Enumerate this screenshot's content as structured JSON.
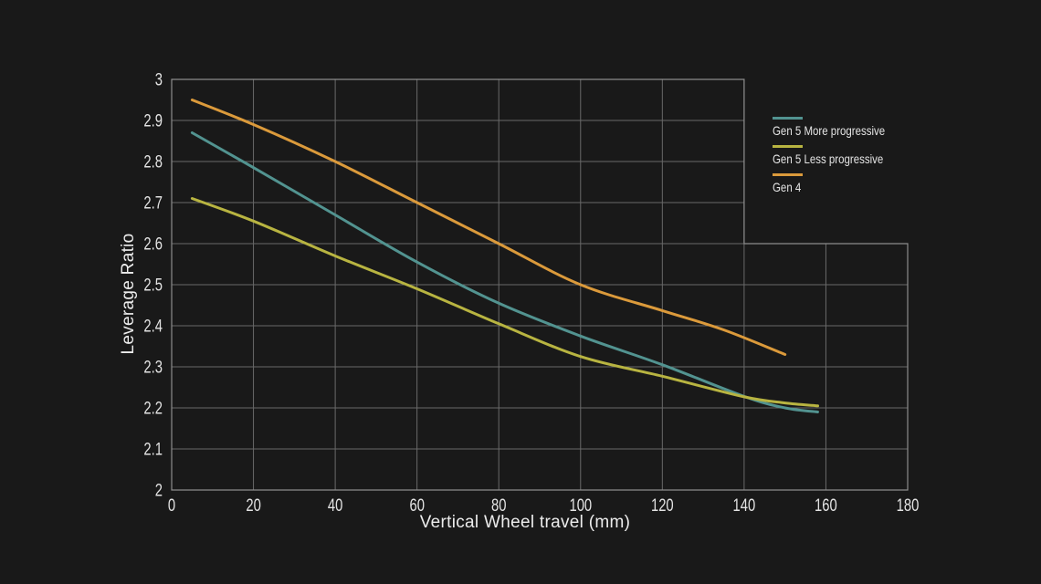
{
  "background_color": "#191919",
  "chart_data": {
    "type": "line",
    "title": "",
    "xlabel": "Vertical Wheel travel (mm)",
    "ylabel": "Leverage Ratio",
    "xlim": [
      0,
      180
    ],
    "ylim": [
      2,
      3
    ],
    "grid": true,
    "legend_position": "top-right",
    "frame_step": {
      "x": 140,
      "y": 2.6
    },
    "x_tick_values": [
      0,
      20,
      40,
      60,
      80,
      100,
      120,
      140,
      160,
      180
    ],
    "x_tick_labels": [
      "0",
      "20",
      "40",
      "60",
      "80",
      "100",
      "120",
      "140",
      "160",
      "180"
    ],
    "y_tick_values": [
      2,
      2.1,
      2.2,
      2.3,
      2.4,
      2.5,
      2.6,
      2.7,
      2.8,
      2.9,
      3
    ],
    "y_tick_labels": [
      "2",
      "2.1",
      "2.2",
      "2.3",
      "2.4",
      "2.5",
      "2.6",
      "2.7",
      "2.8",
      "2.9",
      "3"
    ],
    "colors": {
      "grid": "#696969",
      "frame": "#8d8d8d",
      "tick_text": "#e3e3e3",
      "axis_title_text": "#ececec"
    },
    "series": [
      {
        "name": "Gen 5 More progressive",
        "color": "#529390",
        "x": [
          5,
          20,
          40,
          60,
          80,
          100,
          120,
          140,
          150,
          158
        ],
        "y": [
          2.87,
          2.785,
          2.67,
          2.555,
          2.455,
          2.375,
          2.305,
          2.228,
          2.2,
          2.19
        ]
      },
      {
        "name": "Gen 5 Less progressive",
        "color": "#b8b441",
        "x": [
          5,
          20,
          40,
          60,
          80,
          100,
          120,
          140,
          150,
          158
        ],
        "y": [
          2.71,
          2.655,
          2.57,
          2.49,
          2.405,
          2.325,
          2.277,
          2.227,
          2.212,
          2.205
        ]
      },
      {
        "name": "Gen 4",
        "color": "#db9a3b",
        "x": [
          5,
          20,
          40,
          60,
          80,
          100,
          120,
          135,
          150
        ],
        "y": [
          2.95,
          2.89,
          2.8,
          2.7,
          2.6,
          2.5,
          2.437,
          2.39,
          2.33
        ]
      }
    ]
  }
}
